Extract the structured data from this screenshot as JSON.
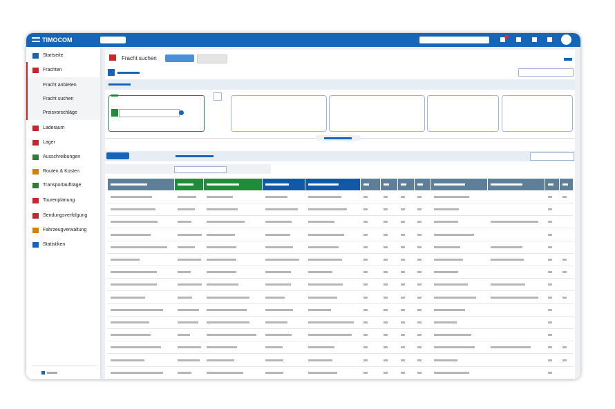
{
  "header": {
    "brand": "TIMOCOM"
  },
  "page": {
    "title": "Fracht suchen"
  },
  "sidebar": {
    "items": [
      "Startseite",
      "Frachten"
    ],
    "subitems": [
      "Fracht anbieten",
      "Fracht suchen",
      "Preisvorschläge"
    ],
    "more_items": [
      "Laderaum",
      "Lager",
      "Ausschreibungen",
      "Routen & Kosten",
      "Transportaufträge",
      "Tourenplanung",
      "Sendungsverfolgung",
      "Fahrzeugverwaltung",
      "Statistiken"
    ]
  }
}
